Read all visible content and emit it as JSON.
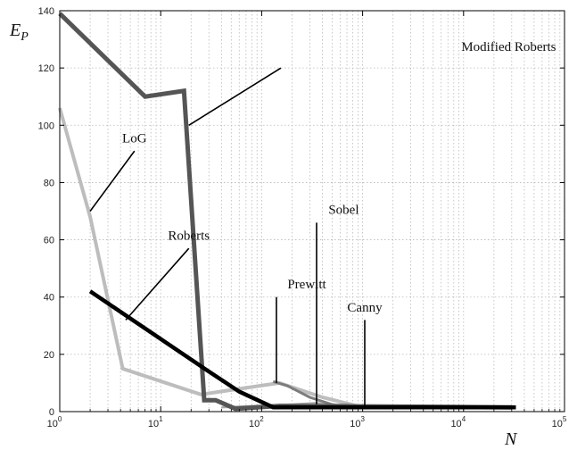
{
  "chart_data": {
    "type": "line",
    "xscale": "log",
    "xlim": [
      1,
      100000
    ],
    "ylim": [
      0,
      140
    ],
    "grid": true,
    "xlabel": "N",
    "ylabel_main": "E",
    "ylabel_sub": "P",
    "x_ticks": [
      {
        "value": 1,
        "base": "10",
        "exp": "0"
      },
      {
        "value": 10,
        "base": "10",
        "exp": "1"
      },
      {
        "value": 100,
        "base": "10",
        "exp": "2"
      },
      {
        "value": 1000,
        "base": "10",
        "exp": "3"
      },
      {
        "value": 10000,
        "base": "10",
        "exp": "4"
      },
      {
        "value": 100000,
        "base": "10",
        "exp": "5"
      }
    ],
    "y_ticks": [
      {
        "value": 0,
        "label": "0"
      },
      {
        "value": 20,
        "label": "20"
      },
      {
        "value": 40,
        "label": "40"
      },
      {
        "value": 60,
        "label": "60"
      },
      {
        "value": 80,
        "label": "80"
      },
      {
        "value": 100,
        "label": "100"
      },
      {
        "value": 120,
        "label": "120"
      },
      {
        "value": 140,
        "label": "140"
      }
    ],
    "series": [
      {
        "name": "LoG",
        "color": "#bdbdbd",
        "width": 4,
        "points": [
          [
            1,
            106
          ],
          [
            2,
            68
          ],
          [
            4.2,
            15
          ],
          [
            25,
            6
          ],
          [
            150,
            10
          ],
          [
            400,
            5
          ],
          [
            1000,
            1.5
          ],
          [
            30000,
            1.5
          ]
        ]
      },
      {
        "name": "Sobel",
        "color": "#a8a8a8",
        "width": 2.5,
        "points": [
          [
            40,
            1.5
          ],
          [
            200,
            2.5
          ],
          [
            350,
            3
          ],
          [
            600,
            2
          ],
          [
            1000,
            1.5
          ],
          [
            30000,
            1.5
          ]
        ]
      },
      {
        "name": "Prewitt",
        "color": "#7c7c7c",
        "width": 3,
        "points": [
          [
            130,
            10.5
          ],
          [
            180,
            9
          ],
          [
            300,
            5
          ],
          [
            500,
            2.5
          ],
          [
            800,
            1.5
          ],
          [
            30000,
            1.5
          ]
        ]
      },
      {
        "name": "Canny",
        "color": "#9a9a9a",
        "width": 2.5,
        "points": [
          [
            300,
            2
          ],
          [
            700,
            2.5
          ],
          [
            1000,
            1.5
          ],
          [
            30000,
            1.5
          ]
        ]
      },
      {
        "name": "Modified Roberts",
        "color": "#555555",
        "width": 5,
        "points": [
          [
            1,
            139
          ],
          [
            7,
            110
          ],
          [
            17,
            112
          ],
          [
            27,
            4
          ],
          [
            35,
            4
          ],
          [
            55,
            1
          ],
          [
            150,
            2
          ],
          [
            30000,
            1.5
          ]
        ]
      },
      {
        "name": "Roberts",
        "color": "#000000",
        "width": 4.5,
        "points": [
          [
            2,
            42
          ],
          [
            30,
            14
          ],
          [
            60,
            7
          ],
          [
            130,
            1.5
          ],
          [
            20000,
            1.5
          ],
          [
            33000,
            1.5
          ]
        ]
      }
    ],
    "annotations": [
      {
        "text": "Modified Roberts",
        "pos": [
          28000,
          126
        ],
        "tip": [
          19,
          100
        ],
        "from": [
          155,
          120
        ]
      },
      {
        "text": "LoG",
        "pos": [
          5.5,
          94
        ],
        "tip": [
          2,
          70
        ],
        "from": [
          5.5,
          91
        ]
      },
      {
        "text": "Roberts",
        "pos": [
          19,
          60
        ],
        "tip": [
          4.5,
          32
        ],
        "from": [
          19,
          57
        ]
      },
      {
        "text": "Sobel",
        "pos": [
          650,
          69
        ],
        "tip": [
          350,
          2.5
        ],
        "from": [
          350,
          66
        ]
      },
      {
        "text": "Prewitt",
        "pos": [
          280,
          43
        ],
        "tip": [
          140,
          10
        ],
        "from": [
          140,
          40
        ]
      },
      {
        "text": "Canny",
        "pos": [
          1050,
          35
        ],
        "tip": [
          1050,
          2
        ],
        "from": [
          1050,
          32
        ]
      }
    ]
  }
}
